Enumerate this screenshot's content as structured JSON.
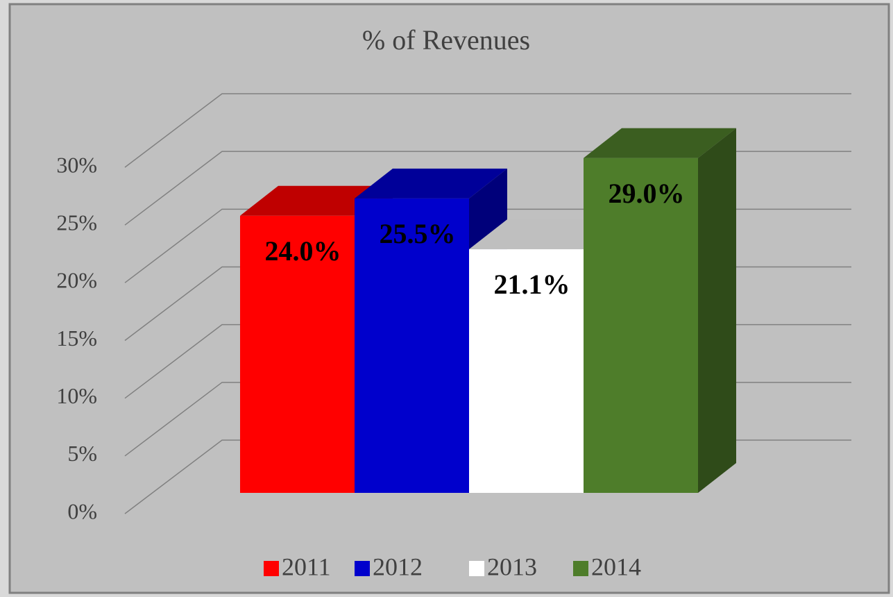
{
  "chart_data": {
    "type": "bar3d",
    "title": "% of Revenues",
    "series": [
      {
        "name": "2011",
        "color": "#ff0000",
        "values": [
          24.0
        ],
        "value_labels": [
          "24.0%"
        ]
      },
      {
        "name": "2012",
        "color": "#0000cc",
        "values": [
          25.5
        ],
        "value_labels": [
          "25.5%"
        ]
      },
      {
        "name": "2013",
        "color": "#ffffff",
        "values": [
          21.1
        ],
        "value_labels": [
          "21.1%"
        ]
      },
      {
        "name": "2014",
        "color": "#4e7d2a",
        "values": [
          29.0
        ],
        "value_labels": [
          "29.0%"
        ]
      }
    ],
    "ylim": [
      0,
      30
    ],
    "yticks": [
      {
        "value": 0,
        "label": "0%"
      },
      {
        "value": 5,
        "label": "5%"
      },
      {
        "value": 10,
        "label": "10%"
      },
      {
        "value": 15,
        "label": "15%"
      },
      {
        "value": 20,
        "label": "20%"
      },
      {
        "value": 25,
        "label": "25%"
      },
      {
        "value": 30,
        "label": "30%"
      }
    ],
    "grid": true,
    "legend": "bottom"
  }
}
